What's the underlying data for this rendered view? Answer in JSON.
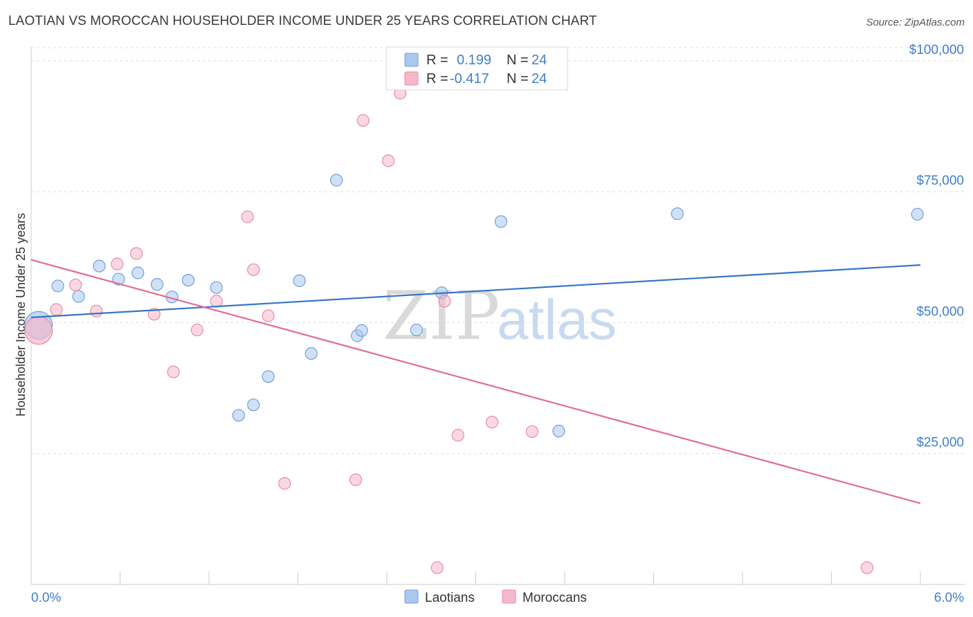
{
  "header": {
    "title": "LAOTIAN VS MOROCCAN HOUSEHOLDER INCOME UNDER 25 YEARS CORRELATION CHART",
    "source": "Source: ZipAtlas.com"
  },
  "watermark": {
    "zip": "ZIP",
    "atlas": "atlas"
  },
  "legend": {
    "rows": [
      {
        "r_label": "R =",
        "r_value": "0.199",
        "n_label": "N =",
        "n_value": "24",
        "color": "#a9c8f0"
      },
      {
        "r_label": "R =",
        "r_value": "-0.417",
        "n_label": "N =",
        "n_value": "24",
        "color": "#f5b8cb"
      }
    ]
  },
  "chart_data": {
    "type": "scatter",
    "title": "LAOTIAN VS MOROCCAN HOUSEHOLDER INCOME UNDER 25 YEARS CORRELATION CHART",
    "xlabel": "",
    "ylabel": "Householder Income Under 25 years",
    "xlim": [
      0,
      6
    ],
    "ylim": [
      0,
      105000
    ],
    "x_tick_labels": [
      "0.0%",
      "6.0%"
    ],
    "y_ticks": [
      {
        "value": 25000,
        "label": "$25,000"
      },
      {
        "value": 50000,
        "label": "$50,000"
      },
      {
        "value": 75000,
        "label": "$75,000"
      },
      {
        "value": 100000,
        "label": "$100,000"
      }
    ],
    "grid": true,
    "legend_position": "top-center",
    "series": [
      {
        "name": "Laotians",
        "color": "#a9c8f0",
        "stroke": "#6f9fd8",
        "trend_color": "#3575c8",
        "trend": {
          "x0": 0.0,
          "y0": 51000,
          "x1": 6.0,
          "y1": 61000
        },
        "points": [
          {
            "x": 0.05,
            "y": 49500,
            "big": true
          },
          {
            "x": 0.18,
            "y": 57000
          },
          {
            "x": 0.32,
            "y": 55000
          },
          {
            "x": 0.46,
            "y": 60800
          },
          {
            "x": 0.59,
            "y": 58300
          },
          {
            "x": 0.72,
            "y": 59500
          },
          {
            "x": 0.85,
            "y": 57300
          },
          {
            "x": 0.95,
            "y": 54900
          },
          {
            "x": 1.06,
            "y": 58100
          },
          {
            "x": 1.25,
            "y": 56700
          },
          {
            "x": 1.4,
            "y": 32300
          },
          {
            "x": 1.5,
            "y": 34300
          },
          {
            "x": 1.6,
            "y": 39700
          },
          {
            "x": 1.81,
            "y": 58000
          },
          {
            "x": 1.89,
            "y": 44100
          },
          {
            "x": 2.06,
            "y": 77200
          },
          {
            "x": 2.2,
            "y": 47500
          },
          {
            "x": 2.23,
            "y": 48500
          },
          {
            "x": 2.6,
            "y": 48600
          },
          {
            "x": 2.77,
            "y": 55700
          },
          {
            "x": 3.17,
            "y": 69300
          },
          {
            "x": 3.56,
            "y": 29300
          },
          {
            "x": 4.36,
            "y": 70800
          },
          {
            "x": 5.98,
            "y": 70700
          }
        ]
      },
      {
        "name": "Moroccans",
        "color": "#f5b8cb",
        "stroke": "#e88aa6",
        "trend_color": "#e06b96",
        "trend": {
          "x0": 0.0,
          "y0": 62000,
          "x1": 6.0,
          "y1": 15500
        },
        "points": [
          {
            "x": 0.05,
            "y": 48500,
            "big": true
          },
          {
            "x": 0.17,
            "y": 52500
          },
          {
            "x": 0.3,
            "y": 57200
          },
          {
            "x": 0.44,
            "y": 52200
          },
          {
            "x": 0.58,
            "y": 61200
          },
          {
            "x": 0.71,
            "y": 63200
          },
          {
            "x": 0.83,
            "y": 51600
          },
          {
            "x": 0.96,
            "y": 40600
          },
          {
            "x": 1.12,
            "y": 48600
          },
          {
            "x": 1.25,
            "y": 54100
          },
          {
            "x": 1.5,
            "y": 60100
          },
          {
            "x": 1.46,
            "y": 70200
          },
          {
            "x": 1.6,
            "y": 51300
          },
          {
            "x": 1.71,
            "y": 19300
          },
          {
            "x": 2.19,
            "y": 20000
          },
          {
            "x": 2.24,
            "y": 88600
          },
          {
            "x": 2.41,
            "y": 80900
          },
          {
            "x": 2.49,
            "y": 93800
          },
          {
            "x": 2.74,
            "y": 3200
          },
          {
            "x": 2.79,
            "y": 54100
          },
          {
            "x": 2.88,
            "y": 28500
          },
          {
            "x": 3.11,
            "y": 31000
          },
          {
            "x": 3.38,
            "y": 29200
          },
          {
            "x": 5.64,
            "y": 3200
          }
        ]
      }
    ]
  }
}
